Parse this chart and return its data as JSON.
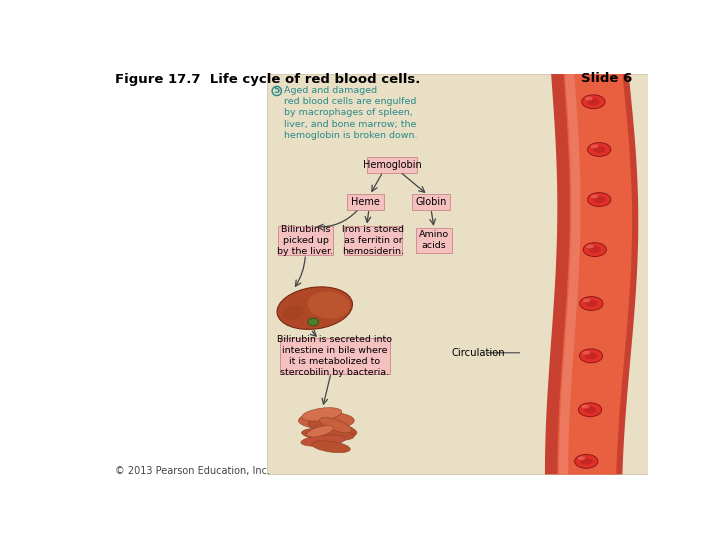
{
  "title": "Figure 17.7  Life cycle of red blood cells.",
  "slide_label": "Slide 6",
  "copyright": "© 2013 Pearson Education, Inc.",
  "bg_color": "#e8dfc5",
  "white_bg": "#ffffff",
  "box_fill": "#f5c0c0",
  "box_edge": "#d09090",
  "title_color": "#000000",
  "teal_color": "#2a8a8a",
  "step5_circle": "5",
  "step5_text": "Aged and damaged\nred blood cells are engulfed\nby macrophages of spleen,\nliver, and bone marrow; the\nhemoglobin is broken down.",
  "hemoglobin_label": "Hemoglobin",
  "heme_label": "Heme",
  "globin_label": "Globin",
  "bilirubin_liver_label": "Bilirubin is\npicked up\nby the liver.",
  "iron_label": "Iron is stored\nas ferritin or\nhemosiderin.",
  "amino_label": "Amino\nacids",
  "bilirubin_intestine_label": "Bilirubin is secreted into\nintestine in bile where\nit is metabolized to\nstercobilin by bacteria.",
  "circulation_label": "Circulation",
  "vessel_outer_color": "#c84030",
  "vessel_inner_color": "#e86040",
  "vessel_highlight": "#f09080",
  "rbc_color": "#e03028",
  "rbc_edge": "#901818",
  "rbc_inner": "#b82020",
  "liver_color": "#b04828",
  "liver_highlight": "#c86038",
  "gb_color": "#4a8030",
  "intestine_color": "#c86040",
  "arrow_color": "#444444"
}
